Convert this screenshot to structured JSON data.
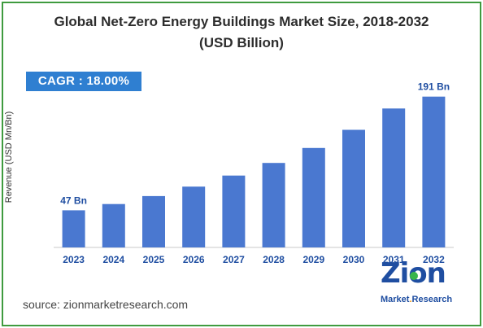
{
  "title_line1": "Global Net-Zero Energy Buildings Market Size, 2018-2032",
  "title_line2": "(USD Billion)",
  "cagr_label": "CAGR : 18.00%",
  "source": "source: zionmarketresearch.com",
  "logo": {
    "main": "Zion",
    "sub_left": "Market",
    "sub_right": "Research"
  },
  "colors": {
    "bar": "#4a78d0",
    "cagr_bg": "#2f7fd1",
    "border": "#3f9b3f",
    "label": "#1f4ea1"
  },
  "chart_data": {
    "type": "bar",
    "categories": [
      "2023",
      "2024",
      "2025",
      "2026",
      "2027",
      "2028",
      "2029",
      "2030",
      "2031",
      "2032"
    ],
    "values": [
      47,
      55,
      65,
      77,
      91,
      107,
      126,
      149,
      176,
      191
    ],
    "data_labels": [
      {
        "index": 0,
        "text": "47 Bn"
      },
      {
        "index": 9,
        "text": "191 Bn"
      }
    ],
    "title": "Global Net-Zero Energy Buildings Market Size, 2018-2032 (USD Billion)",
    "xlabel": "",
    "ylabel": "Revenue (USD Mn/Bn)",
    "ylim": [
      0,
      200
    ],
    "grid": false,
    "legend": "none"
  }
}
